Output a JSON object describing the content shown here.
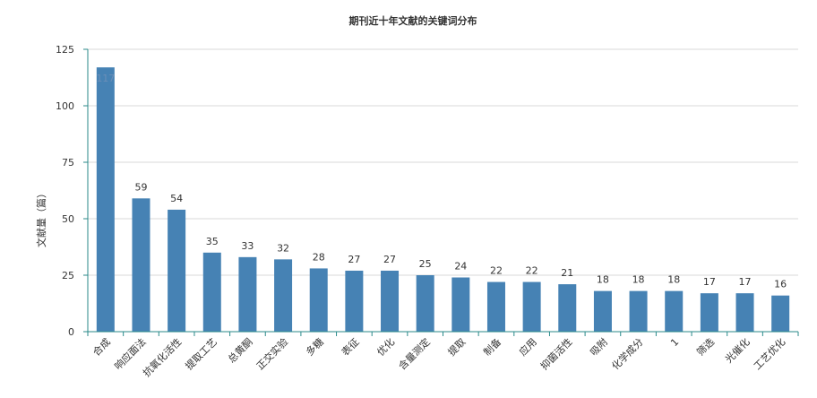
{
  "chart_data": {
    "type": "bar",
    "title": "期刊近十年文献的关键词分布",
    "xlabel": "",
    "ylabel": "文献量（篇）",
    "ylim": [
      0,
      125
    ],
    "yticks": [
      0,
      25,
      50,
      75,
      100,
      125
    ],
    "grid": true,
    "categories": [
      "合成",
      "响应面法",
      "抗氧化活性",
      "提取工艺",
      "总黄酮",
      "正交实验",
      "多糖",
      "表征",
      "优化",
      "含量测定",
      "提取",
      "制备",
      "应用",
      "抑菌活性",
      "吸附",
      "化学成分",
      "1",
      "筛选",
      "光催化",
      "工艺优化"
    ],
    "values": [
      117,
      59,
      54,
      35,
      33,
      32,
      28,
      27,
      27,
      25,
      24,
      22,
      22,
      21,
      18,
      18,
      18,
      17,
      17,
      16
    ],
    "colors": {
      "bar": "#4682b4",
      "axis": "#2a8a8a",
      "grid": "#d9d9d9"
    }
  }
}
